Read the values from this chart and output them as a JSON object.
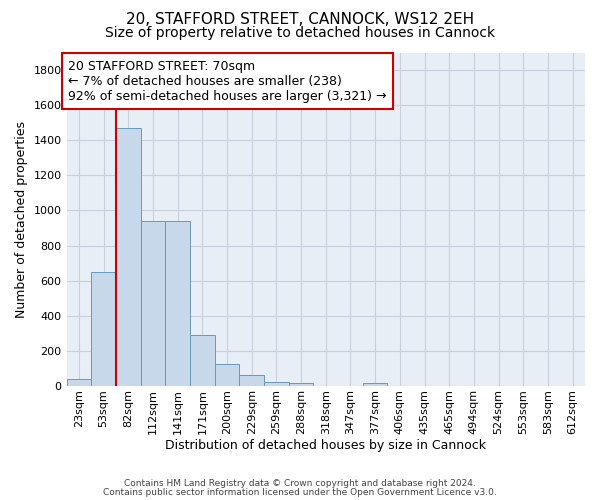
{
  "title_line1": "20, STAFFORD STREET, CANNOCK, WS12 2EH",
  "title_line2": "Size of property relative to detached houses in Cannock",
  "xlabel": "Distribution of detached houses by size in Cannock",
  "ylabel": "Number of detached properties",
  "bar_color": "#c8d8eb",
  "bar_edge_color": "#6699bb",
  "categories": [
    "23sqm",
    "53sqm",
    "82sqm",
    "112sqm",
    "141sqm",
    "171sqm",
    "200sqm",
    "229sqm",
    "259sqm",
    "288sqm",
    "318sqm",
    "347sqm",
    "377sqm",
    "406sqm",
    "435sqm",
    "465sqm",
    "494sqm",
    "524sqm",
    "553sqm",
    "583sqm",
    "612sqm"
  ],
  "values": [
    40,
    650,
    1470,
    940,
    940,
    290,
    125,
    65,
    25,
    15,
    0,
    0,
    15,
    0,
    0,
    0,
    0,
    0,
    0,
    0,
    0
  ],
  "ylim": [
    0,
    1900
  ],
  "yticks": [
    0,
    200,
    400,
    600,
    800,
    1000,
    1200,
    1400,
    1600,
    1800
  ],
  "property_line_x": 1.5,
  "annotation_title": "20 STAFFORD STREET: 70sqm",
  "annotation_line2": "← 7% of detached houses are smaller (238)",
  "annotation_line3": "92% of semi-detached houses are larger (3,321) →",
  "annotation_box_color": "#ffffff",
  "annotation_border_color": "#cc0000",
  "vline_color": "#cc0000",
  "grid_color": "#c8d0dc",
  "background_color": "#e8eef6",
  "footer_line1": "Contains HM Land Registry data © Crown copyright and database right 2024.",
  "footer_line2": "Contains public sector information licensed under the Open Government Licence v3.0.",
  "title_fontsize": 11,
  "subtitle_fontsize": 10,
  "axis_label_fontsize": 9,
  "tick_fontsize": 8,
  "annotation_fontsize": 9
}
